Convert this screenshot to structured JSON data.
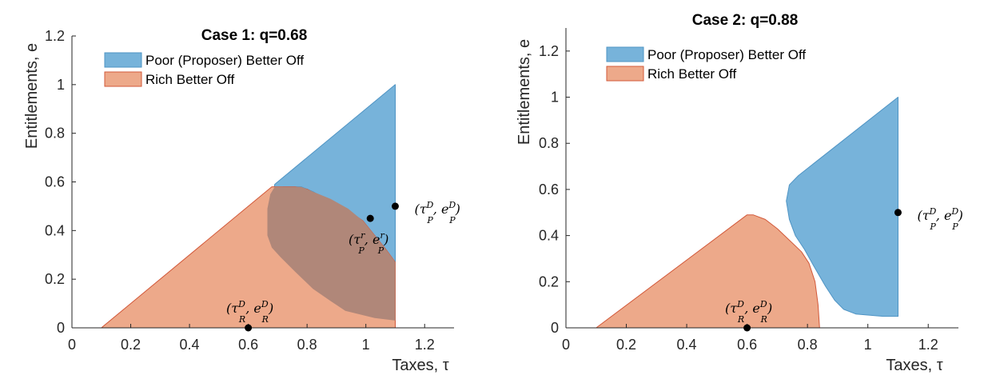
{
  "chart_data": [
    {
      "type": "area",
      "title": "Case 1: q=0.68",
      "xlabel": "Taxes, τ",
      "ylabel": "Entitlements, e",
      "xlim": [
        0,
        1.3
      ],
      "ylim": [
        0,
        1.2
      ],
      "xticks": [
        "0",
        "0.2",
        "0.4",
        "0.6",
        "0.8",
        "1",
        "1.2"
      ],
      "yticks": [
        "0",
        "0.2",
        "0.4",
        "0.6",
        "0.8",
        "1",
        "1.2"
      ],
      "grid": false,
      "legend_position": "top-left",
      "series": [
        {
          "name": "Poor (Proposer) Better Off",
          "color": "#77b3da",
          "stroke": "#4f94c4",
          "polygon": [
            [
              0.69,
              0.59
            ],
            [
              1.1,
              1.0
            ],
            [
              1.1,
              0.27
            ],
            [
              1.06,
              0.32
            ],
            [
              1.0,
              0.38
            ],
            [
              0.94,
              0.44
            ],
            [
              0.88,
              0.52
            ],
            [
              0.82,
              0.56
            ],
            [
              0.78,
              0.58
            ],
            [
              0.72,
              0.58
            ],
            [
              0.68,
              0.56
            ],
            [
              0.665,
              0.48
            ],
            [
              0.665,
              0.42
            ]
          ]
        },
        {
          "name": "Rich Better Off",
          "color": "#eda98a",
          "stroke": "#d2593a",
          "polygon": [
            [
              0.1,
              0.0
            ],
            [
              1.1,
              0.0
            ],
            [
              1.1,
              0.27
            ],
            [
              1.07,
              0.32
            ],
            [
              1.03,
              0.38
            ],
            [
              0.99,
              0.44
            ],
            [
              0.93,
              0.49
            ],
            [
              0.86,
              0.53
            ],
            [
              0.8,
              0.57
            ],
            [
              0.76,
              0.58
            ],
            [
              0.68,
              0.58
            ]
          ]
        },
        {
          "name": "",
          "color": "#b08779",
          "stroke": "none",
          "polygon": [
            [
              0.69,
              0.58
            ],
            [
              0.78,
              0.58
            ],
            [
              0.82,
              0.56
            ],
            [
              0.88,
              0.53
            ],
            [
              0.94,
              0.49
            ],
            [
              0.99,
              0.44
            ],
            [
              1.03,
              0.38
            ],
            [
              1.07,
              0.32
            ],
            [
              1.1,
              0.27
            ],
            [
              1.1,
              0.03
            ],
            [
              1.03,
              0.04
            ],
            [
              0.93,
              0.07
            ],
            [
              0.88,
              0.11
            ],
            [
              0.82,
              0.16
            ],
            [
              0.76,
              0.23
            ],
            [
              0.71,
              0.29
            ],
            [
              0.68,
              0.33
            ],
            [
              0.665,
              0.38
            ],
            [
              0.665,
              0.49
            ],
            [
              0.675,
              0.55
            ]
          ]
        }
      ],
      "points": [
        {
          "x": 0.6,
          "y": 0.0,
          "label": "(τ_R^D, e_R^D)",
          "label_side": "above"
        },
        {
          "x": 1.015,
          "y": 0.45,
          "label": "(τ_P^r, e_P^r)",
          "label_side": "below"
        },
        {
          "x": 1.1,
          "y": 0.5,
          "label": "(τ_P^D, e_P^D)",
          "label_side": "right"
        }
      ]
    },
    {
      "type": "area",
      "title": "Case 2: q=0.88",
      "xlabel": "Taxes, τ",
      "ylabel": "Entitlements, e",
      "xlim": [
        0,
        1.3
      ],
      "ylim": [
        0,
        1.3
      ],
      "xticks": [
        "0",
        "0.2",
        "0.4",
        "0.6",
        "0.8",
        "1",
        "1.2"
      ],
      "yticks": [
        "0",
        "0.2",
        "0.4",
        "0.6",
        "0.8",
        "1",
        "1.2"
      ],
      "grid": false,
      "legend_position": "top-left",
      "series": [
        {
          "name": "Poor (Proposer) Better Off",
          "color": "#77b3da",
          "stroke": "#4f94c4",
          "polygon": [
            [
              0.77,
              0.66
            ],
            [
              1.1,
              1.0
            ],
            [
              1.1,
              0.05
            ],
            [
              1.05,
              0.05
            ],
            [
              0.96,
              0.06
            ],
            [
              0.92,
              0.08
            ],
            [
              0.89,
              0.12
            ],
            [
              0.86,
              0.18
            ],
            [
              0.82,
              0.27
            ],
            [
              0.79,
              0.34
            ],
            [
              0.76,
              0.4
            ],
            [
              0.74,
              0.47
            ],
            [
              0.73,
              0.55
            ],
            [
              0.74,
              0.62
            ]
          ]
        },
        {
          "name": "Rich Better Off",
          "color": "#eda98a",
          "stroke": "#d2593a",
          "polygon": [
            [
              0.1,
              0.0
            ],
            [
              0.84,
              0.0
            ],
            [
              0.835,
              0.1
            ],
            [
              0.825,
              0.2
            ],
            [
              0.805,
              0.28
            ],
            [
              0.78,
              0.33
            ],
            [
              0.74,
              0.38
            ],
            [
              0.7,
              0.43
            ],
            [
              0.66,
              0.47
            ],
            [
              0.62,
              0.49
            ],
            [
              0.6,
              0.49
            ]
          ]
        }
      ],
      "points": [
        {
          "x": 0.6,
          "y": 0.0,
          "label": "(τ_R^D, e_R^D)",
          "label_side": "above"
        },
        {
          "x": 1.1,
          "y": 0.5,
          "label": "(τ_P^D, e_P^D)",
          "label_side": "right"
        }
      ]
    }
  ]
}
